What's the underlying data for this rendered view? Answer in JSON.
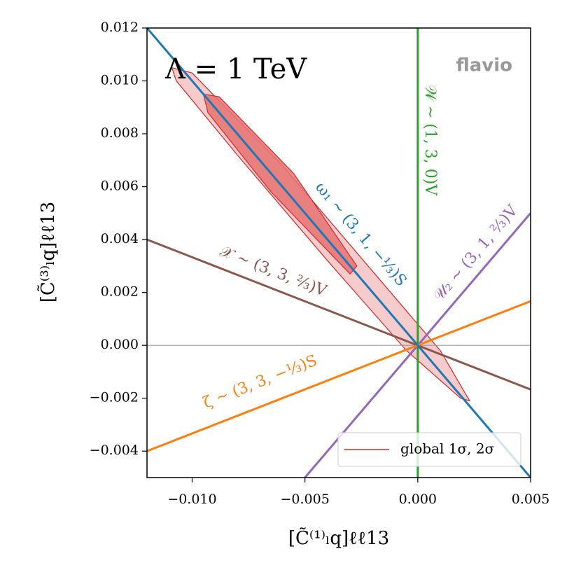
{
  "chart_data": {
    "type": "line",
    "xlabel": "[C̃⁽¹⁾ₗq]ℓℓ13",
    "ylabel": "[C̃⁽³⁾ₗq]ℓℓ13",
    "xlim": [
      -0.012,
      0.005
    ],
    "ylim": [
      -0.005,
      0.012
    ],
    "xticks": [
      {
        "value": -0.01,
        "label": "−0.010"
      },
      {
        "value": -0.005,
        "label": "−0.005"
      },
      {
        "value": 0,
        "label": "0.000"
      },
      {
        "value": 0.005,
        "label": "0.005"
      }
    ],
    "yticks": [
      {
        "value": -0.004,
        "label": "−0.004"
      },
      {
        "value": -0.002,
        "label": "−0.002"
      },
      {
        "value": 0,
        "label": "0.000"
      },
      {
        "value": 0.002,
        "label": "0.002"
      },
      {
        "value": 0.004,
        "label": "0.004"
      },
      {
        "value": 0.006,
        "label": "0.006"
      },
      {
        "value": 0.008,
        "label": "0.008"
      },
      {
        "value": 0.01,
        "label": "0.010"
      },
      {
        "value": 0.012,
        "label": "0.012"
      }
    ],
    "hline": 0,
    "hline_color": "#999999",
    "annotations": [
      "Λ = 1 TeV",
      "flavio"
    ],
    "contours": {
      "name": "global 1σ, 2σ",
      "color": "#d62728",
      "levels": [
        {
          "x": [
            -0.0109,
            -0.01,
            -0.006,
            -0.002,
            0.001,
            0.0023,
            0.0019,
            -0.0005,
            -0.004,
            -0.008,
            -0.0107
          ],
          "y": [
            0.0105,
            0.0103,
            0.0068,
            0.0028,
            -0.0002,
            -0.0021,
            -0.002,
            -0.0002,
            0.0032,
            0.0072,
            0.01
          ]
        },
        {
          "x": [
            -0.0095,
            -0.0088,
            -0.0055,
            -0.0027,
            -0.003,
            -0.0065,
            -0.0093
          ],
          "y": [
            0.0095,
            0.0094,
            0.0065,
            0.003,
            0.0027,
            0.0058,
            0.0088
          ]
        }
      ]
    },
    "series": [
      {
        "label": "ω₁ ∼ (3, 1, −⅓)S",
        "color": "#1f77b4",
        "x": [
          -0.012,
          0.005
        ],
        "values": [
          0.012,
          -0.005
        ]
      },
      {
        "label": "𝒲 ∼ (1, 3, 0)V",
        "color": "#2ca02c",
        "x": [
          0,
          0
        ],
        "values": [
          -0.005,
          0.012
        ]
      },
      {
        "label": "𝒰₂ ∼ (3, 1, ⅔)V",
        "color": "#9467bd",
        "x": [
          -0.005,
          0.005
        ],
        "values": [
          -0.005,
          0.005
        ]
      },
      {
        "label": "𝒳 ∼ (3, 3, ⅔)V",
        "color": "#8c564b",
        "x": [
          -0.012,
          0.005
        ],
        "values": [
          0.004,
          -0.00167
        ]
      },
      {
        "label": "ζ ∼ (3, 3, −⅓)S",
        "color": "#ff7f0e",
        "x": [
          -0.012,
          0.005
        ],
        "values": [
          -0.004,
          0.00167
        ]
      }
    ]
  }
}
